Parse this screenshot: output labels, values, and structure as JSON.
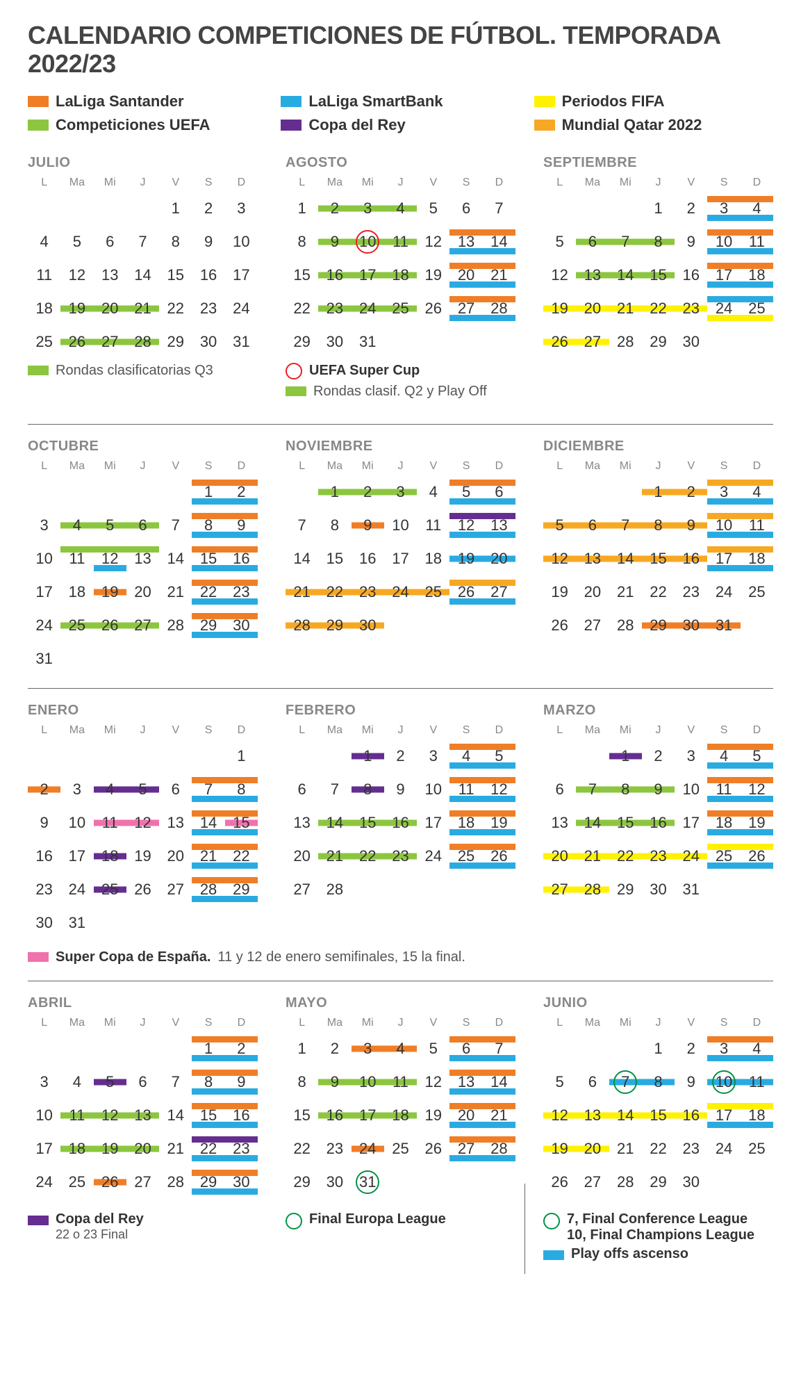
{
  "title": "CALENDARIO COMPETICIONES DE FÚTBOL. TEMPORADA 2022/23",
  "colors": {
    "laliga": "#f07e26",
    "smartbank": "#29abe2",
    "fifa": "#fff200",
    "uefa": "#8cc63f",
    "copa": "#662d91",
    "qatar": "#f7a823",
    "supercopa": "#f072ac",
    "redcircle": "#ed1c24",
    "greencircle": "#009245"
  },
  "legend": [
    {
      "label": "LaLiga Santander",
      "colorKey": "laliga"
    },
    {
      "label": "LaLiga SmartBank",
      "colorKey": "smartbank"
    },
    {
      "label": "Periodos FIFA",
      "colorKey": "fifa"
    },
    {
      "label": "Competiciones UEFA",
      "colorKey": "uefa"
    },
    {
      "label": "Copa del Rey",
      "colorKey": "copa"
    },
    {
      "label": "Mundial Qatar 2022",
      "colorKey": "qatar"
    }
  ],
  "dow": [
    "L",
    "Ma",
    "Mi",
    "J",
    "V",
    "S",
    "D"
  ],
  "months": [
    {
      "name": "JULIO",
      "start": 4,
      "days": 31,
      "bars": [
        {
          "from": 19,
          "to": 21,
          "colorKey": "uefa",
          "pos": "mid"
        },
        {
          "from": 26,
          "to": 28,
          "colorKey": "uefa",
          "pos": "mid"
        }
      ],
      "sub": [
        {
          "type": "sw",
          "colorKey": "uefa",
          "text": "Rondas clasificatorias Q3",
          "bold": false
        }
      ]
    },
    {
      "name": "AGOSTO",
      "start": 0,
      "days": 31,
      "bars": [
        {
          "from": 2,
          "to": 4,
          "colorKey": "uefa",
          "pos": "mid"
        },
        {
          "from": 9,
          "to": 11,
          "colorKey": "uefa",
          "pos": "mid"
        },
        {
          "from": 13,
          "to": 14,
          "colorKey": "laliga",
          "pos": "top"
        },
        {
          "from": 13,
          "to": 14,
          "colorKey": "smartbank",
          "pos": "bot"
        },
        {
          "from": 16,
          "to": 18,
          "colorKey": "uefa",
          "pos": "mid"
        },
        {
          "from": 20,
          "to": 21,
          "colorKey": "laliga",
          "pos": "top"
        },
        {
          "from": 20,
          "to": 21,
          "colorKey": "smartbank",
          "pos": "bot"
        },
        {
          "from": 23,
          "to": 25,
          "colorKey": "uefa",
          "pos": "mid"
        },
        {
          "from": 27,
          "to": 28,
          "colorKey": "laliga",
          "pos": "top"
        },
        {
          "from": 27,
          "to": 28,
          "colorKey": "smartbank",
          "pos": "bot"
        }
      ],
      "circles": [
        {
          "day": 10,
          "colorKey": "redcircle"
        }
      ],
      "sub": [
        {
          "type": "circ",
          "colorKey": "redcircle",
          "text": "UEFA Super Cup",
          "bold": true
        },
        {
          "type": "sw",
          "colorKey": "uefa",
          "text": "Rondas clasif. Q2 y Play Off",
          "bold": false
        }
      ]
    },
    {
      "name": "SEPTIEMBRE",
      "start": 3,
      "days": 30,
      "bars": [
        {
          "from": 3,
          "to": 4,
          "colorKey": "laliga",
          "pos": "top"
        },
        {
          "from": 3,
          "to": 4,
          "colorKey": "smartbank",
          "pos": "bot"
        },
        {
          "from": 6,
          "to": 8,
          "colorKey": "uefa",
          "pos": "mid"
        },
        {
          "from": 10,
          "to": 11,
          "colorKey": "laliga",
          "pos": "top"
        },
        {
          "from": 10,
          "to": 11,
          "colorKey": "smartbank",
          "pos": "bot"
        },
        {
          "from": 13,
          "to": 15,
          "colorKey": "uefa",
          "pos": "mid"
        },
        {
          "from": 17,
          "to": 18,
          "colorKey": "laliga",
          "pos": "top"
        },
        {
          "from": 17,
          "to": 18,
          "colorKey": "smartbank",
          "pos": "bot"
        },
        {
          "from": 19,
          "to": 23,
          "colorKey": "fifa",
          "pos": "mid"
        },
        {
          "from": 24,
          "to": 25,
          "colorKey": "smartbank",
          "pos": "top"
        },
        {
          "from": 24,
          "to": 25,
          "colorKey": "fifa",
          "pos": "bot"
        },
        {
          "from": 26,
          "to": 27,
          "colorKey": "fifa",
          "pos": "mid"
        }
      ]
    },
    {
      "name": "OCTUBRE",
      "start": 5,
      "days": 31,
      "bars": [
        {
          "from": 1,
          "to": 2,
          "colorKey": "laliga",
          "pos": "top"
        },
        {
          "from": 1,
          "to": 2,
          "colorKey": "smartbank",
          "pos": "bot"
        },
        {
          "from": 4,
          "to": 6,
          "colorKey": "uefa",
          "pos": "mid"
        },
        {
          "from": 8,
          "to": 9,
          "colorKey": "laliga",
          "pos": "top"
        },
        {
          "from": 8,
          "to": 9,
          "colorKey": "smartbank",
          "pos": "bot"
        },
        {
          "from": 11,
          "to": 13,
          "colorKey": "uefa",
          "pos": "top"
        },
        {
          "from": 12,
          "to": 12,
          "colorKey": "smartbank",
          "pos": "bot"
        },
        {
          "from": 15,
          "to": 16,
          "colorKey": "laliga",
          "pos": "top"
        },
        {
          "from": 15,
          "to": 16,
          "colorKey": "smartbank",
          "pos": "bot"
        },
        {
          "from": 19,
          "to": 19,
          "colorKey": "laliga",
          "pos": "mid"
        },
        {
          "from": 22,
          "to": 23,
          "colorKey": "laliga",
          "pos": "top"
        },
        {
          "from": 22,
          "to": 23,
          "colorKey": "smartbank",
          "pos": "bot"
        },
        {
          "from": 25,
          "to": 27,
          "colorKey": "uefa",
          "pos": "mid"
        },
        {
          "from": 29,
          "to": 30,
          "colorKey": "laliga",
          "pos": "top"
        },
        {
          "from": 29,
          "to": 30,
          "colorKey": "smartbank",
          "pos": "bot"
        }
      ]
    },
    {
      "name": "NOVIEMBRE",
      "start": 1,
      "days": 30,
      "bars": [
        {
          "from": 1,
          "to": 3,
          "colorKey": "uefa",
          "pos": "mid"
        },
        {
          "from": 5,
          "to": 6,
          "colorKey": "laliga",
          "pos": "top"
        },
        {
          "from": 5,
          "to": 6,
          "colorKey": "smartbank",
          "pos": "bot"
        },
        {
          "from": 9,
          "to": 9,
          "colorKey": "laliga",
          "pos": "mid"
        },
        {
          "from": 12,
          "to": 13,
          "colorKey": "copa",
          "pos": "top"
        },
        {
          "from": 12,
          "to": 13,
          "colorKey": "smartbank",
          "pos": "bot"
        },
        {
          "from": 19,
          "to": 20,
          "colorKey": "smartbank",
          "pos": "mid"
        },
        {
          "from": 21,
          "to": 25,
          "colorKey": "qatar",
          "pos": "mid"
        },
        {
          "from": 26,
          "to": 27,
          "colorKey": "qatar",
          "pos": "top"
        },
        {
          "from": 26,
          "to": 27,
          "colorKey": "smartbank",
          "pos": "bot"
        },
        {
          "from": 28,
          "to": 30,
          "colorKey": "qatar",
          "pos": "mid"
        }
      ]
    },
    {
      "name": "DICIEMBRE",
      "start": 3,
      "days": 31,
      "bars": [
        {
          "from": 1,
          "to": 2,
          "colorKey": "qatar",
          "pos": "mid"
        },
        {
          "from": 3,
          "to": 4,
          "colorKey": "qatar",
          "pos": "top"
        },
        {
          "from": 3,
          "to": 4,
          "colorKey": "smartbank",
          "pos": "bot"
        },
        {
          "from": 5,
          "to": 9,
          "colorKey": "qatar",
          "pos": "mid"
        },
        {
          "from": 10,
          "to": 11,
          "colorKey": "qatar",
          "pos": "top"
        },
        {
          "from": 10,
          "to": 11,
          "colorKey": "smartbank",
          "pos": "bot"
        },
        {
          "from": 12,
          "to": 16,
          "colorKey": "qatar",
          "pos": "mid"
        },
        {
          "from": 17,
          "to": 18,
          "colorKey": "qatar",
          "pos": "top"
        },
        {
          "from": 17,
          "to": 18,
          "colorKey": "smartbank",
          "pos": "bot"
        },
        {
          "from": 29,
          "to": 31,
          "colorKey": "laliga",
          "pos": "mid"
        }
      ]
    },
    {
      "name": "ENERO",
      "start": 6,
      "days": 31,
      "bars": [
        {
          "from": 2,
          "to": 2,
          "colorKey": "laliga",
          "pos": "mid"
        },
        {
          "from": 4,
          "to": 5,
          "colorKey": "copa",
          "pos": "mid"
        },
        {
          "from": 7,
          "to": 8,
          "colorKey": "laliga",
          "pos": "top"
        },
        {
          "from": 7,
          "to": 8,
          "colorKey": "smartbank",
          "pos": "bot"
        },
        {
          "from": 11,
          "to": 12,
          "colorKey": "supercopa",
          "pos": "mid"
        },
        {
          "from": 14,
          "to": 15,
          "colorKey": "laliga",
          "pos": "top"
        },
        {
          "from": 14,
          "to": 15,
          "colorKey": "smartbank",
          "pos": "bot"
        },
        {
          "from": 15,
          "to": 15,
          "colorKey": "supercopa",
          "pos": "mid"
        },
        {
          "from": 18,
          "to": 18,
          "colorKey": "copa",
          "pos": "mid"
        },
        {
          "from": 21,
          "to": 22,
          "colorKey": "laliga",
          "pos": "top"
        },
        {
          "from": 21,
          "to": 22,
          "colorKey": "smartbank",
          "pos": "bot"
        },
        {
          "from": 25,
          "to": 25,
          "colorKey": "copa",
          "pos": "mid"
        },
        {
          "from": 28,
          "to": 29,
          "colorKey": "laliga",
          "pos": "top"
        },
        {
          "from": 28,
          "to": 29,
          "colorKey": "smartbank",
          "pos": "bot"
        }
      ]
    },
    {
      "name": "FEBRERO",
      "start": 2,
      "days": 28,
      "bars": [
        {
          "from": 1,
          "to": 1,
          "colorKey": "copa",
          "pos": "mid"
        },
        {
          "from": 4,
          "to": 5,
          "colorKey": "laliga",
          "pos": "top"
        },
        {
          "from": 4,
          "to": 5,
          "colorKey": "smartbank",
          "pos": "bot"
        },
        {
          "from": 8,
          "to": 8,
          "colorKey": "copa",
          "pos": "mid"
        },
        {
          "from": 11,
          "to": 12,
          "colorKey": "laliga",
          "pos": "top"
        },
        {
          "from": 11,
          "to": 12,
          "colorKey": "smartbank",
          "pos": "bot"
        },
        {
          "from": 14,
          "to": 16,
          "colorKey": "uefa",
          "pos": "mid"
        },
        {
          "from": 18,
          "to": 19,
          "colorKey": "laliga",
          "pos": "top"
        },
        {
          "from": 18,
          "to": 19,
          "colorKey": "smartbank",
          "pos": "bot"
        },
        {
          "from": 21,
          "to": 23,
          "colorKey": "uefa",
          "pos": "mid"
        },
        {
          "from": 25,
          "to": 26,
          "colorKey": "laliga",
          "pos": "top"
        },
        {
          "from": 25,
          "to": 26,
          "colorKey": "smartbank",
          "pos": "bot"
        }
      ]
    },
    {
      "name": "MARZO",
      "start": 2,
      "days": 31,
      "bars": [
        {
          "from": 1,
          "to": 1,
          "colorKey": "copa",
          "pos": "mid"
        },
        {
          "from": 4,
          "to": 5,
          "colorKey": "laliga",
          "pos": "top"
        },
        {
          "from": 4,
          "to": 5,
          "colorKey": "smartbank",
          "pos": "bot"
        },
        {
          "from": 7,
          "to": 9,
          "colorKey": "uefa",
          "pos": "mid"
        },
        {
          "from": 11,
          "to": 12,
          "colorKey": "laliga",
          "pos": "top"
        },
        {
          "from": 11,
          "to": 12,
          "colorKey": "smartbank",
          "pos": "bot"
        },
        {
          "from": 14,
          "to": 16,
          "colorKey": "uefa",
          "pos": "mid"
        },
        {
          "from": 18,
          "to": 19,
          "colorKey": "laliga",
          "pos": "top"
        },
        {
          "from": 18,
          "to": 19,
          "colorKey": "smartbank",
          "pos": "bot"
        },
        {
          "from": 20,
          "to": 24,
          "colorKey": "fifa",
          "pos": "mid"
        },
        {
          "from": 25,
          "to": 26,
          "colorKey": "fifa",
          "pos": "top"
        },
        {
          "from": 25,
          "to": 26,
          "colorKey": "smartbank",
          "pos": "bot"
        },
        {
          "from": 27,
          "to": 28,
          "colorKey": "fifa",
          "pos": "mid"
        }
      ]
    },
    {
      "name": "ABRIL",
      "start": 5,
      "days": 30,
      "bars": [
        {
          "from": 1,
          "to": 2,
          "colorKey": "laliga",
          "pos": "top"
        },
        {
          "from": 1,
          "to": 2,
          "colorKey": "smartbank",
          "pos": "bot"
        },
        {
          "from": 5,
          "to": 5,
          "colorKey": "copa",
          "pos": "mid"
        },
        {
          "from": 8,
          "to": 9,
          "colorKey": "laliga",
          "pos": "top"
        },
        {
          "from": 8,
          "to": 9,
          "colorKey": "smartbank",
          "pos": "bot"
        },
        {
          "from": 11,
          "to": 13,
          "colorKey": "uefa",
          "pos": "mid"
        },
        {
          "from": 15,
          "to": 16,
          "colorKey": "laliga",
          "pos": "top"
        },
        {
          "from": 15,
          "to": 16,
          "colorKey": "smartbank",
          "pos": "bot"
        },
        {
          "from": 18,
          "to": 20,
          "colorKey": "uefa",
          "pos": "mid"
        },
        {
          "from": 22,
          "to": 23,
          "colorKey": "copa",
          "pos": "top"
        },
        {
          "from": 22,
          "to": 23,
          "colorKey": "smartbank",
          "pos": "bot"
        },
        {
          "from": 26,
          "to": 26,
          "colorKey": "laliga",
          "pos": "mid"
        },
        {
          "from": 29,
          "to": 30,
          "colorKey": "laliga",
          "pos": "top"
        },
        {
          "from": 29,
          "to": 30,
          "colorKey": "smartbank",
          "pos": "bot"
        }
      ],
      "footer": [
        {
          "type": "sw",
          "colorKey": "copa",
          "title": "Copa del Rey",
          "sub": "22 o 23 Final"
        }
      ]
    },
    {
      "name": "MAYO",
      "start": 0,
      "days": 31,
      "bars": [
        {
          "from": 3,
          "to": 4,
          "colorKey": "laliga",
          "pos": "mid"
        },
        {
          "from": 6,
          "to": 7,
          "colorKey": "laliga",
          "pos": "top"
        },
        {
          "from": 6,
          "to": 7,
          "colorKey": "smartbank",
          "pos": "bot"
        },
        {
          "from": 9,
          "to": 11,
          "colorKey": "uefa",
          "pos": "mid"
        },
        {
          "from": 13,
          "to": 14,
          "colorKey": "laliga",
          "pos": "top"
        },
        {
          "from": 13,
          "to": 14,
          "colorKey": "smartbank",
          "pos": "bot"
        },
        {
          "from": 16,
          "to": 18,
          "colorKey": "uefa",
          "pos": "mid"
        },
        {
          "from": 20,
          "to": 21,
          "colorKey": "laliga",
          "pos": "top"
        },
        {
          "from": 20,
          "to": 21,
          "colorKey": "smartbank",
          "pos": "bot"
        },
        {
          "from": 24,
          "to": 24,
          "colorKey": "laliga",
          "pos": "mid"
        },
        {
          "from": 27,
          "to": 28,
          "colorKey": "laliga",
          "pos": "top"
        },
        {
          "from": 27,
          "to": 28,
          "colorKey": "smartbank",
          "pos": "bot"
        }
      ],
      "circles": [
        {
          "day": 31,
          "colorKey": "greencircle"
        }
      ],
      "footer": [
        {
          "type": "circ",
          "colorKey": "greencircle",
          "title": "Final Europa League"
        }
      ]
    },
    {
      "name": "JUNIO",
      "start": 3,
      "days": 30,
      "bars": [
        {
          "from": 3,
          "to": 4,
          "colorKey": "laliga",
          "pos": "top"
        },
        {
          "from": 3,
          "to": 4,
          "colorKey": "smartbank",
          "pos": "bot"
        },
        {
          "from": 7,
          "to": 8,
          "colorKey": "smartbank",
          "pos": "mid"
        },
        {
          "from": 10,
          "to": 11,
          "colorKey": "smartbank",
          "pos": "mid"
        },
        {
          "from": 12,
          "to": 16,
          "colorKey": "fifa",
          "pos": "mid"
        },
        {
          "from": 17,
          "to": 18,
          "colorKey": "fifa",
          "pos": "top"
        },
        {
          "from": 17,
          "to": 18,
          "colorKey": "smartbank",
          "pos": "bot"
        },
        {
          "from": 19,
          "to": 20,
          "colorKey": "fifa",
          "pos": "mid"
        }
      ],
      "circles": [
        {
          "day": 7,
          "colorKey": "greencircle"
        },
        {
          "day": 10,
          "colorKey": "greencircle"
        }
      ],
      "footer": [
        {
          "type": "circ",
          "colorKey": "greencircle",
          "title": "7, Final Conference League\n10, Final Champions League"
        },
        {
          "type": "sw",
          "colorKey": "smartbank",
          "title": "Play offs ascenso"
        }
      ]
    }
  ],
  "supercopaFooter": {
    "colorKey": "supercopa",
    "bold": "Super Copa de España.",
    "text": "11 y 12 de enero semifinales, 15 la final."
  }
}
